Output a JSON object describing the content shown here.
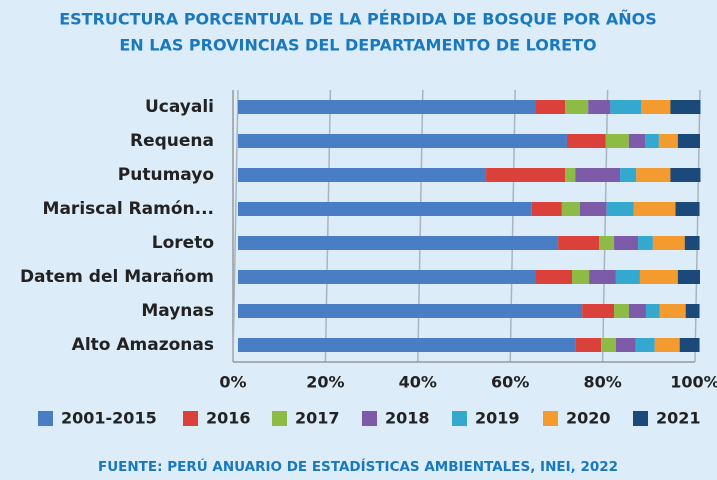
{
  "chart_data": {
    "type": "stacked_barh",
    "title": [
      "ESTRUCTURA PORCENTUAL DE LA PÉRDIDA DE BOSQUE POR AÑOS",
      "EN LAS PROVINCIAS DEL DEPARTAMENTO DE LORETO"
    ],
    "categories": [
      "Ucayali",
      "Requena",
      "Putumayo",
      "Mariscal Ramón...",
      "Loreto",
      "Datem del Marañom",
      "Maynas",
      "Alto Amazonas"
    ],
    "series": [
      {
        "name": "2001-2015",
        "color": "#4a7ec4",
        "values": [
          64.5,
          71.2,
          53.7,
          63.6,
          69.3,
          64.5,
          74.5,
          73.0
        ]
      },
      {
        "name": "2016",
        "color": "#d9413a",
        "values": [
          6.3,
          8.4,
          17.1,
          6.5,
          8.9,
          7.8,
          6.9,
          5.6
        ]
      },
      {
        "name": "2017",
        "color": "#8dbb45",
        "values": [
          5.0,
          5.0,
          2.2,
          3.9,
          3.2,
          3.7,
          3.2,
          3.2
        ]
      },
      {
        "name": "2018",
        "color": "#7e5ba8",
        "values": [
          4.8,
          3.5,
          9.7,
          5.8,
          5.2,
          5.8,
          3.7,
          4.3
        ]
      },
      {
        "name": "2019",
        "color": "#35a8cf",
        "values": [
          6.7,
          3.0,
          3.5,
          5.8,
          3.2,
          5.2,
          3.0,
          4.1
        ]
      },
      {
        "name": "2020",
        "color": "#f49b2f",
        "values": [
          6.3,
          4.1,
          7.4,
          9.1,
          6.9,
          8.2,
          5.6,
          5.4
        ]
      },
      {
        "name": "2021",
        "color": "#1b4a7a",
        "values": [
          6.5,
          4.8,
          6.5,
          5.2,
          3.2,
          4.8,
          3.0,
          4.3
        ]
      }
    ],
    "xlim": [
      0,
      100
    ],
    "xticks": [
      {
        "value": 0,
        "label": "0%"
      },
      {
        "value": 20,
        "label": "20%"
      },
      {
        "value": 40,
        "label": "40%"
      },
      {
        "value": 60,
        "label": "60%"
      },
      {
        "value": 80,
        "label": "80%"
      },
      {
        "value": 100,
        "label": "100%"
      }
    ],
    "grid": true,
    "legend": "bottom",
    "source": "FUENTE: PERÚ ANUARIO DE ESTADÍSTICAS AMBIENTALES, INEI, 2022"
  }
}
